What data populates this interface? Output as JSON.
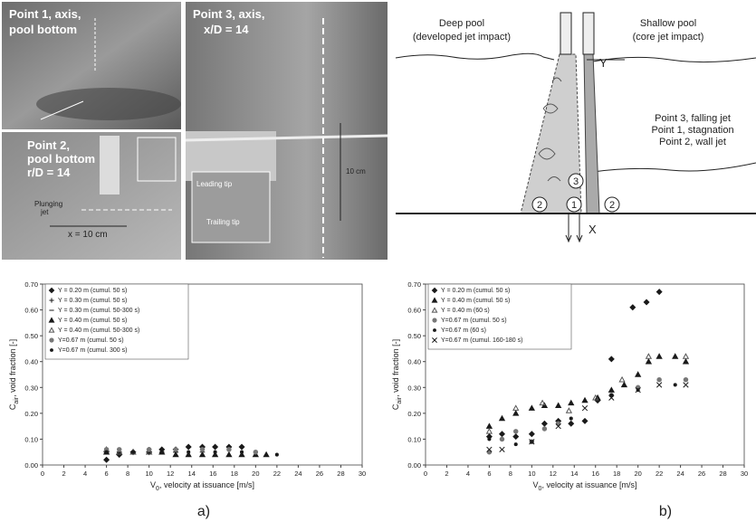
{
  "photos": {
    "photo_1": {
      "lines": [
        "Point 1, axis,",
        "pool bottom"
      ]
    },
    "photo_2": {
      "lines": [
        "Point 2,",
        "pool bottom",
        "r/D = 14"
      ],
      "jet_lines": [
        "Plunging",
        "jet"
      ],
      "scale": "x = 10 cm"
    },
    "photo_3": {
      "lines": [
        "Point 3, axis,",
        "x/D = 14"
      ],
      "leading": "Leading tip",
      "trailing": "Trailing tip",
      "scale": "10 cm"
    }
  },
  "diagram": {
    "deep_pool": "Deep pool",
    "deep_pool_note": "(developed jet impact)",
    "shallow_pool": "Shallow pool",
    "shallow_pool_note": "(core jet impact)",
    "y_axis": "Y",
    "x_axis": "X",
    "points": [
      "Point 3, falling jet",
      "Point 1, stagnation",
      "Point 2, wall jet"
    ],
    "markers": [
      "3",
      "1",
      "2",
      "2"
    ]
  },
  "captions": [
    "a)",
    "b)"
  ],
  "chart_data": [
    {
      "type": "scatter",
      "ylabel_symbol": "C",
      "ylabel_subscript": "air",
      "ylabel_text": ", void fraction [-]",
      "xlabel_symbol": "V",
      "xlabel_subscript": "0",
      "xlabel_text": ", velocity at issuance [m/s]",
      "xlim": [
        0,
        30
      ],
      "xticks": [
        0,
        2,
        4,
        6,
        8,
        10,
        12,
        14,
        16,
        18,
        20,
        22,
        24,
        26,
        28,
        30
      ],
      "ylim": [
        0,
        0.7
      ],
      "yticks": [
        {
          "value": 0,
          "label": "0.00"
        },
        {
          "value": 0.1,
          "label": "0.10"
        },
        {
          "value": 0.2,
          "label": "0.20"
        },
        {
          "value": 0.3,
          "label": "0.30"
        },
        {
          "value": 0.4,
          "label": "0.40"
        },
        {
          "value": 0.5,
          "label": "0.50"
        },
        {
          "value": 0.6,
          "label": "0.60"
        },
        {
          "value": 0.7,
          "label": "0.70"
        }
      ],
      "grid": false,
      "series": [
        {
          "name": "Y = 0.20 m (cumul. 50 s)",
          "marker": "diamond",
          "color": "#1a1a1a",
          "x": [
            6,
            7.2,
            8.5,
            10,
            11.2,
            12.5,
            13.7,
            15,
            16.2,
            17.5,
            18.7
          ],
          "values": [
            0.02,
            0.04,
            0.05,
            0.05,
            0.06,
            0.06,
            0.07,
            0.07,
            0.07,
            0.07,
            0.07
          ]
        },
        {
          "name": "Y = 0.30 m (cumul. 50 s)",
          "marker": "plus",
          "color": "#1a1a1a",
          "x": [
            6,
            7.2,
            8.5,
            10,
            11.2,
            12.5
          ],
          "values": [
            0.05,
            0.05,
            0.05,
            0.06,
            0.05,
            0.05
          ]
        },
        {
          "name": "Y = 0.30 m (cumul. 50-300 s)",
          "marker": "dash",
          "color": "#1a1a1a",
          "x": [
            6,
            7.2,
            10,
            12.5,
            15
          ],
          "values": [
            0.05,
            0.05,
            0.05,
            0.05,
            0.05
          ]
        },
        {
          "name": "Y = 0.40 m (cumul. 50 s)",
          "marker": "triangle",
          "color": "#1a1a1a",
          "x": [
            6,
            7.2,
            8.5,
            10,
            11.2,
            12.5,
            13.7,
            15,
            16.2,
            17.5,
            18.7,
            20,
            21
          ],
          "values": [
            0.05,
            0.05,
            0.05,
            0.05,
            0.05,
            0.04,
            0.04,
            0.04,
            0.04,
            0.04,
            0.04,
            0.04,
            0.04
          ]
        },
        {
          "name": "Y = 0.40 m (cumul. 50-300 s)",
          "marker": "open-triangle",
          "color": "#555555",
          "x": [
            6,
            7.2,
            8.5,
            10
          ],
          "values": [
            0.06,
            0.05,
            0.05,
            0.05
          ]
        },
        {
          "name": "Y=0.67 m (cumul. 50 s)",
          "marker": "circle",
          "color": "#777777",
          "x": [
            6,
            7.2,
            10,
            12.5,
            15,
            17.5,
            20
          ],
          "values": [
            0.06,
            0.06,
            0.06,
            0.06,
            0.06,
            0.06,
            0.05
          ]
        },
        {
          "name": "Y=0.67 m (cumul. 300 s)",
          "marker": "dot",
          "color": "#1a1a1a",
          "x": [
            6,
            8.5,
            11.2,
            13.7,
            16.2,
            18.7,
            22
          ],
          "values": [
            0.05,
            0.05,
            0.05,
            0.05,
            0.05,
            0.05,
            0.04
          ]
        }
      ]
    },
    {
      "type": "scatter",
      "ylabel_symbol": "C",
      "ylabel_subscript": "air",
      "ylabel_text": ", void fraction [-]",
      "xlabel_symbol": "V",
      "xlabel_subscript": "0",
      "xlabel_text": ", velocity at issuance [m/s]",
      "xlim": [
        0,
        30
      ],
      "xticks": [
        0,
        2,
        4,
        6,
        8,
        10,
        12,
        14,
        16,
        18,
        20,
        22,
        24,
        26,
        28,
        30
      ],
      "ylim": [
        0,
        0.7
      ],
      "yticks": [
        {
          "value": 0,
          "label": "0.00"
        },
        {
          "value": 0.1,
          "label": "0.10"
        },
        {
          "value": 0.2,
          "label": "0.20"
        },
        {
          "value": 0.3,
          "label": "0.30"
        },
        {
          "value": 0.4,
          "label": "0.40"
        },
        {
          "value": 0.5,
          "label": "0.50"
        },
        {
          "value": 0.6,
          "label": "0.60"
        },
        {
          "value": 0.7,
          "label": "0.70"
        }
      ],
      "grid": false,
      "series": [
        {
          "name": "Y = 0.20 m (cumul. 50 s)",
          "marker": "diamond",
          "color": "#1a1a1a",
          "x": [
            6,
            7.2,
            8.5,
            10,
            11.2,
            12.5,
            13.7,
            15,
            16.2,
            17.5,
            19.5,
            20.8,
            22
          ],
          "values": [
            0.11,
            0.12,
            0.11,
            0.12,
            0.16,
            0.17,
            0.16,
            0.17,
            0.25,
            0.41,
            0.61,
            0.63,
            0.67
          ]
        },
        {
          "name": "Y = 0.40 m (cumul. 50 s)",
          "marker": "triangle",
          "color": "#1a1a1a",
          "x": [
            6,
            7.2,
            8.5,
            10,
            11.2,
            12.5,
            13.7,
            15,
            16.2,
            17.5,
            18.7,
            20,
            21,
            22,
            23.5,
            24.5
          ],
          "values": [
            0.15,
            0.18,
            0.2,
            0.22,
            0.23,
            0.23,
            0.24,
            0.25,
            0.26,
            0.29,
            0.31,
            0.35,
            0.4,
            0.42,
            0.42,
            0.4
          ]
        },
        {
          "name": "Y = 0.40 m (60 s)",
          "marker": "open-triangle",
          "color": "#555555",
          "x": [
            6,
            8.5,
            11,
            13.5,
            16,
            18.5,
            21,
            24.5
          ],
          "values": [
            0.13,
            0.22,
            0.24,
            0.21,
            0.26,
            0.33,
            0.42,
            0.42
          ]
        },
        {
          "name": "Y=0.67 m (cumul. 50 s)",
          "marker": "circle",
          "color": "#777777",
          "x": [
            6,
            7.2,
            8.5,
            10,
            11.2,
            12.5,
            17.5,
            20,
            22,
            24.5
          ],
          "values": [
            0.05,
            0.1,
            0.13,
            0.09,
            0.14,
            0.16,
            0.27,
            0.3,
            0.33,
            0.33
          ]
        },
        {
          "name": "Y=0.67 m (60 s)",
          "marker": "dot",
          "color": "#1a1a1a",
          "x": [
            6,
            8.5,
            10,
            13.7,
            17.5,
            20,
            23.5
          ],
          "values": [
            0.1,
            0.08,
            0.09,
            0.18,
            0.27,
            0.29,
            0.31
          ]
        },
        {
          "name": "Y=0.67 m (cumul. 160-180 s)",
          "marker": "cross",
          "color": "#1a1a1a",
          "x": [
            6,
            7.2,
            10,
            12.5,
            15,
            17.5,
            20,
            22,
            24.5
          ],
          "values": [
            0.06,
            0.06,
            0.09,
            0.15,
            0.22,
            0.26,
            0.29,
            0.31,
            0.31
          ]
        }
      ]
    }
  ]
}
